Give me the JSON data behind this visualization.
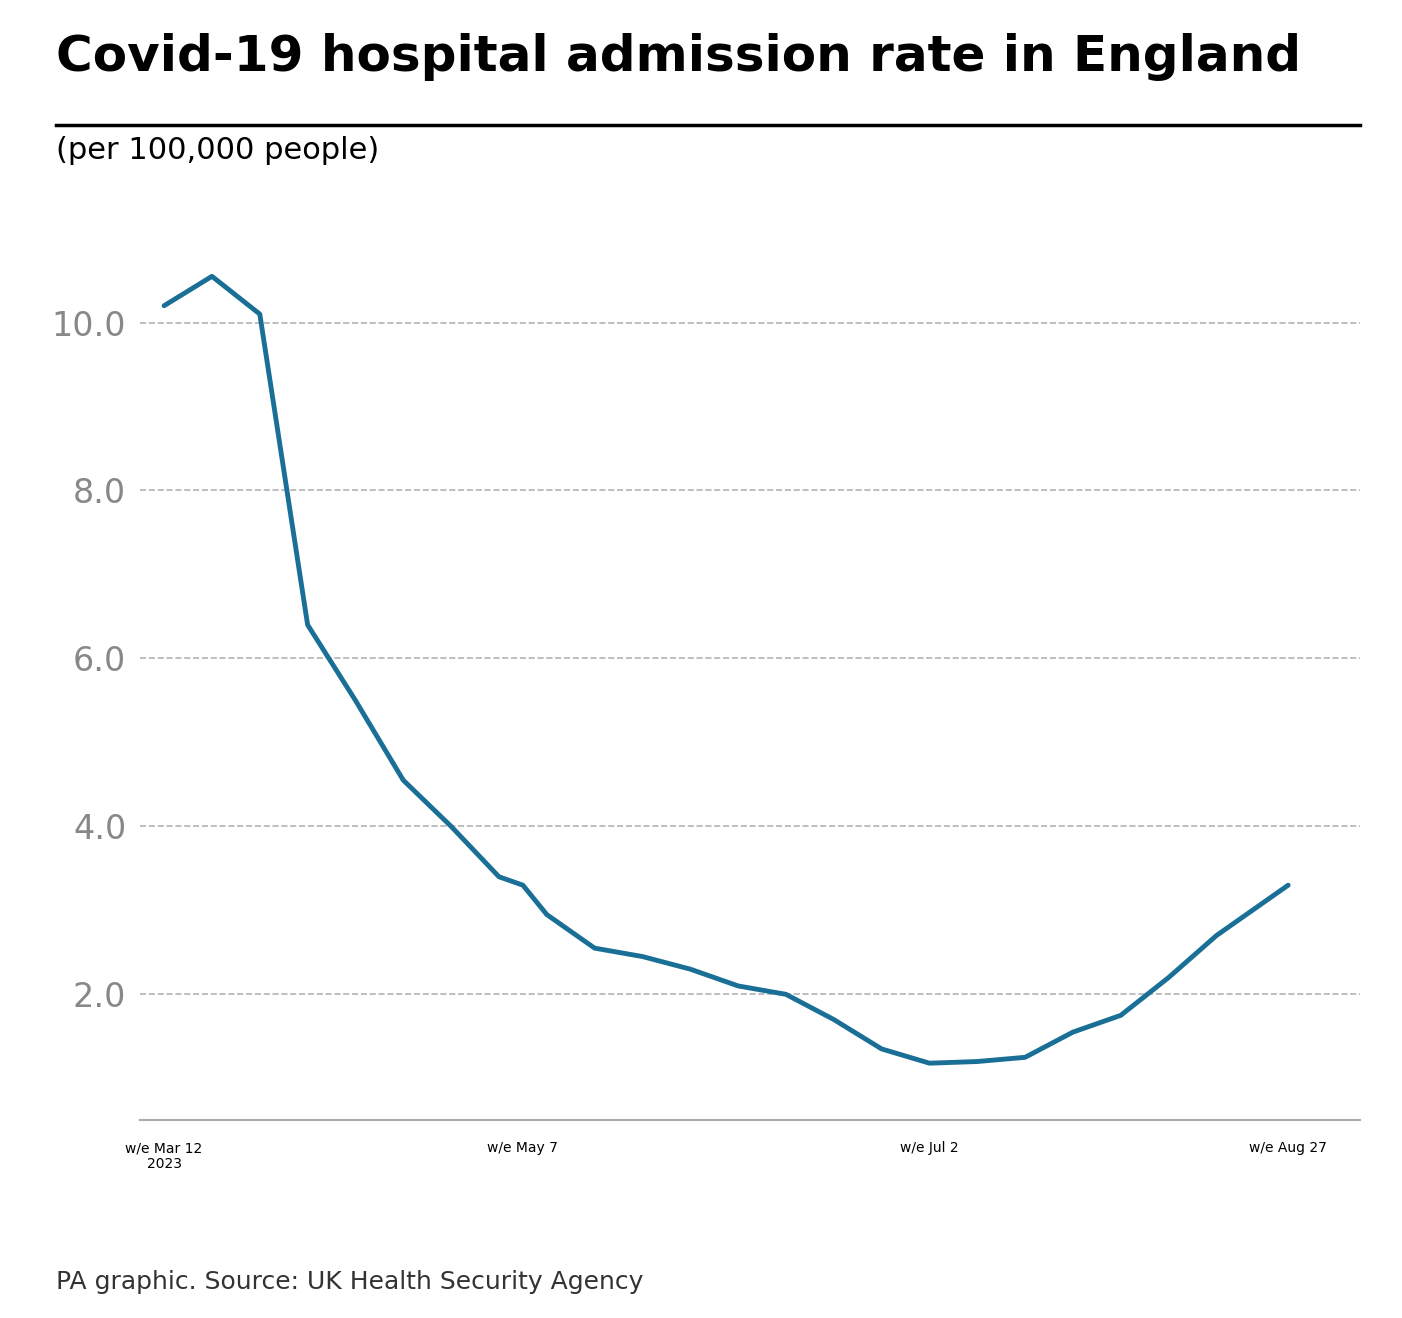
{
  "title": "Covid-19 hospital admission rate in England",
  "ylabel": "(per 100,000 people)",
  "source": "PA graphic. Source: UK Health Security Agency",
  "line_color": "#1a6f96",
  "line_width": 3.5,
  "background_color": "#ffffff",
  "yticks": [
    2.0,
    4.0,
    6.0,
    8.0,
    10.0
  ],
  "ylim": [
    0.5,
    11.8
  ],
  "xtick_labels": [
    "w/e Mar 12\n2023",
    "w/e May 7",
    "w/e Jul 2",
    "w/e Aug 27"
  ],
  "xtick_positions": [
    0,
    7.5,
    16,
    23.5
  ],
  "x_values": [
    0,
    1,
    2,
    3,
    4,
    5,
    6,
    7,
    7.5,
    8,
    9,
    10,
    11,
    12,
    13,
    14,
    15,
    16,
    17,
    18,
    19,
    20,
    21,
    22,
    23,
    23.5
  ],
  "y_values": [
    10.2,
    10.55,
    10.1,
    6.4,
    5.5,
    4.55,
    4.0,
    3.4,
    3.3,
    2.95,
    2.55,
    2.45,
    2.3,
    2.1,
    2.0,
    1.7,
    1.35,
    1.18,
    1.2,
    1.25,
    1.55,
    1.75,
    2.2,
    2.7,
    3.1,
    3.3
  ],
  "grid_color": "#aaaaaa",
  "tick_color": "#888888",
  "title_fontsize": 36,
  "label_fontsize": 22,
  "tick_fontsize": 24,
  "xtick_fontsize": 26,
  "source_fontsize": 18
}
